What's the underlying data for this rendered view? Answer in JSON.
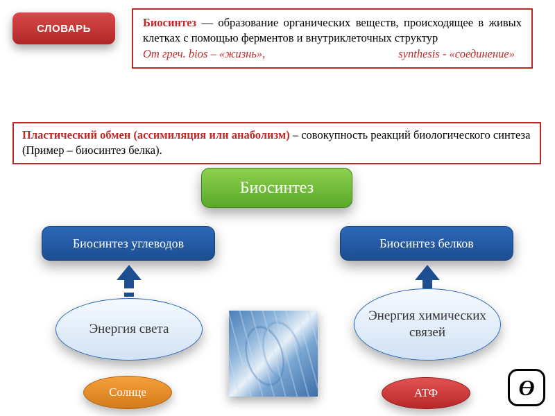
{
  "colors": {
    "accent_red": "#c02828",
    "pill_green_top": "#8fd14f",
    "pill_green_bot": "#59a829",
    "pill_blue_top": "#2c68b6",
    "pill_blue_bot": "#1d4e92",
    "ellipse_border": "#2a66b3",
    "orange_top": "#f5a03e",
    "orange_bot": "#d37a17",
    "red_small_top": "#e25252",
    "red_small_bot": "#b92828",
    "background": "#ffffff"
  },
  "dictionary": {
    "badge": "СЛОВАРЬ",
    "term": "Биосинтез",
    "definition": " — образование органических веществ, происходящее в живых клетках с помощью ферментов и внутриклеточных структур",
    "etymology_left": "От греч. bios – «жизнь»,",
    "etymology_right": "synthesis - «соединение»"
  },
  "plastic": {
    "term": "Пластический обмен (ассимиляция или анаболизм)",
    "text": " – совокупность реакций биологического синтеза (Пример – биосинтез белка)."
  },
  "diagram": {
    "type": "flowchart",
    "root": "Биосинтез",
    "branches": [
      {
        "title": "Биосинтез углеводов",
        "energy": "Энергия света",
        "source": "Солнце",
        "source_color": "#d37a17"
      },
      {
        "title": "Биосинтез белков",
        "energy": "Энергия химических связей",
        "source": "АТФ",
        "source_color": "#b92828"
      }
    ],
    "fontsize_root": 24,
    "fontsize_branch": 18,
    "fontsize_energy": 19,
    "fontsize_source": 17,
    "layout": "two-column under central root, arrows point upward from energy ellipses to branch pills",
    "center_image": "DNA double helix abstract blue"
  },
  "logo": "Ө"
}
